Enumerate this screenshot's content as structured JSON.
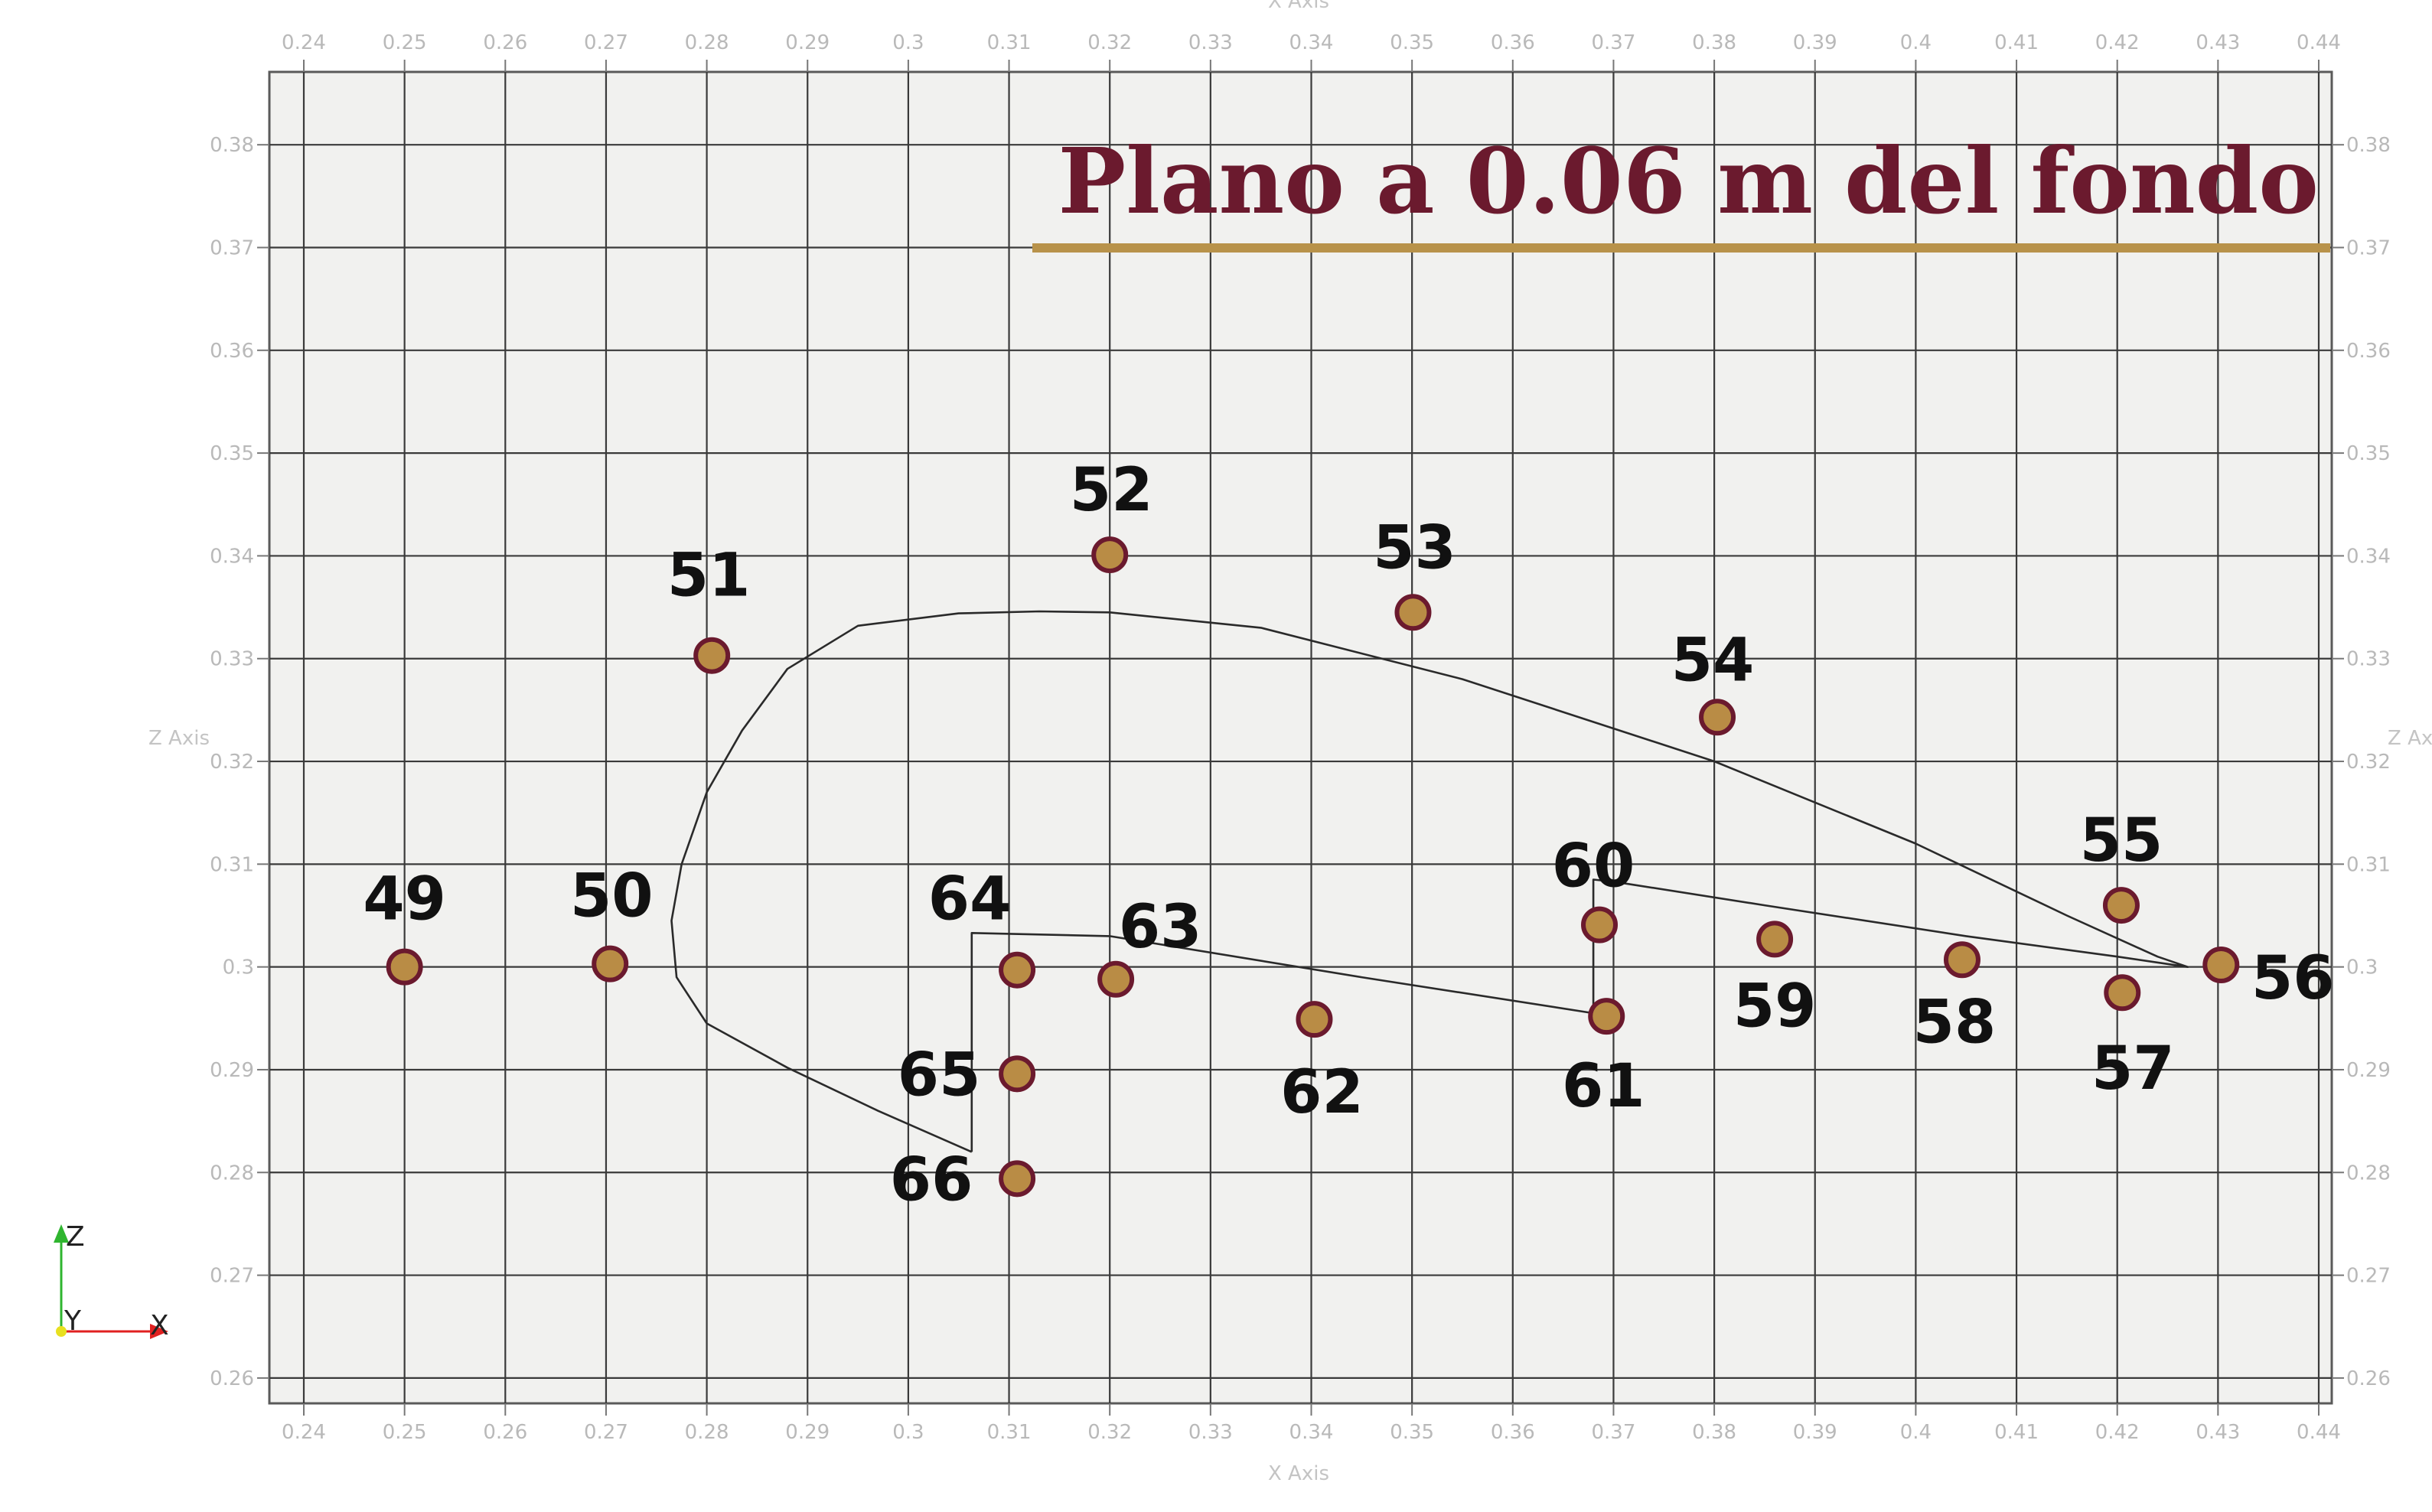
{
  "chart_data": {
    "type": "scatter",
    "title": "Plano a 0.06 m del fondo",
    "xlabel": "X Axis",
    "ylabel": "Z Axis",
    "xlim": [
      0.24,
      0.44
    ],
    "ylim": [
      0.2565,
      0.383
    ],
    "grid": true,
    "x_ticks": [
      "0.24",
      "0.25",
      "0.26",
      "0.27",
      "0.28",
      "0.29",
      "0.3",
      "0.31",
      "0.32",
      "0.33",
      "0.34",
      "0.35",
      "0.36",
      "0.37",
      "0.38",
      "0.39",
      "0.4",
      "0.41",
      "0.42",
      "0.43",
      "0.44"
    ],
    "z_ticks": [
      "0.26",
      "0.27",
      "0.28",
      "0.29",
      "0.3",
      "0.31",
      "0.32",
      "0.33",
      "0.34",
      "0.35",
      "0.36",
      "0.37",
      "0.38"
    ],
    "series": [
      {
        "points": [
          {
            "label": "49",
            "x": 0.25,
            "z": 0.3
          },
          {
            "label": "50",
            "x": 0.2704,
            "z": 0.3003
          },
          {
            "label": "51",
            "x": 0.2805,
            "z": 0.3303
          },
          {
            "label": "52",
            "x": 0.32,
            "z": 0.3401
          },
          {
            "label": "53",
            "x": 0.3501,
            "z": 0.3345
          },
          {
            "label": "54",
            "x": 0.3803,
            "z": 0.3243
          },
          {
            "label": "55",
            "x": 0.4204,
            "z": 0.306
          },
          {
            "label": "56",
            "x": 0.4303,
            "z": 0.3002
          },
          {
            "label": "57",
            "x": 0.4205,
            "z": 0.2975
          },
          {
            "label": "58",
            "x": 0.4046,
            "z": 0.3007
          },
          {
            "label": "59",
            "x": 0.386,
            "z": 0.3027
          },
          {
            "label": "60",
            "x": 0.3686,
            "z": 0.3041
          },
          {
            "label": "61",
            "x": 0.3693,
            "z": 0.2952
          },
          {
            "label": "62",
            "x": 0.3403,
            "z": 0.2949
          },
          {
            "label": "63",
            "x": 0.3206,
            "z": 0.2988
          },
          {
            "label": "64",
            "x": 0.3108,
            "z": 0.2997
          },
          {
            "label": "65",
            "x": 0.3108,
            "z": 0.2896
          },
          {
            "label": "66",
            "x": 0.3108,
            "z": 0.2794
          }
        ]
      }
    ],
    "outline": [
      [
        0.3063,
        0.282
      ],
      [
        0.297,
        0.286
      ],
      [
        0.288,
        0.2902
      ],
      [
        0.28,
        0.2945
      ],
      [
        0.277,
        0.299
      ],
      [
        0.2765,
        0.3045
      ],
      [
        0.2775,
        0.31
      ],
      [
        0.28,
        0.317
      ],
      [
        0.2835,
        0.323
      ],
      [
        0.288,
        0.329
      ],
      [
        0.295,
        0.3332
      ],
      [
        0.305,
        0.3344
      ],
      [
        0.313,
        0.3346
      ],
      [
        0.32,
        0.3345
      ],
      [
        0.335,
        0.333
      ],
      [
        0.355,
        0.328
      ],
      [
        0.38,
        0.32
      ],
      [
        0.4,
        0.312
      ],
      [
        0.415,
        0.305
      ],
      [
        0.424,
        0.301
      ],
      [
        0.427,
        0.3
      ],
      [
        0.42,
        0.301
      ],
      [
        0.405,
        0.303
      ],
      [
        0.385,
        0.306
      ],
      [
        0.37,
        0.3083
      ],
      [
        0.368,
        0.3085
      ],
      [
        0.368,
        0.2955
      ],
      [
        0.345,
        0.299
      ],
      [
        0.32,
        0.303
      ],
      [
        0.3063,
        0.3033
      ],
      [
        0.3063,
        0.282
      ]
    ],
    "point_fill": "#b98c45",
    "point_stroke": "#6b1a2e",
    "title_color": "#6b1a2e",
    "title_underline_color": "#b8924a"
  },
  "orientation_triad": {
    "z": "Z",
    "y": "Y",
    "x": "X"
  }
}
